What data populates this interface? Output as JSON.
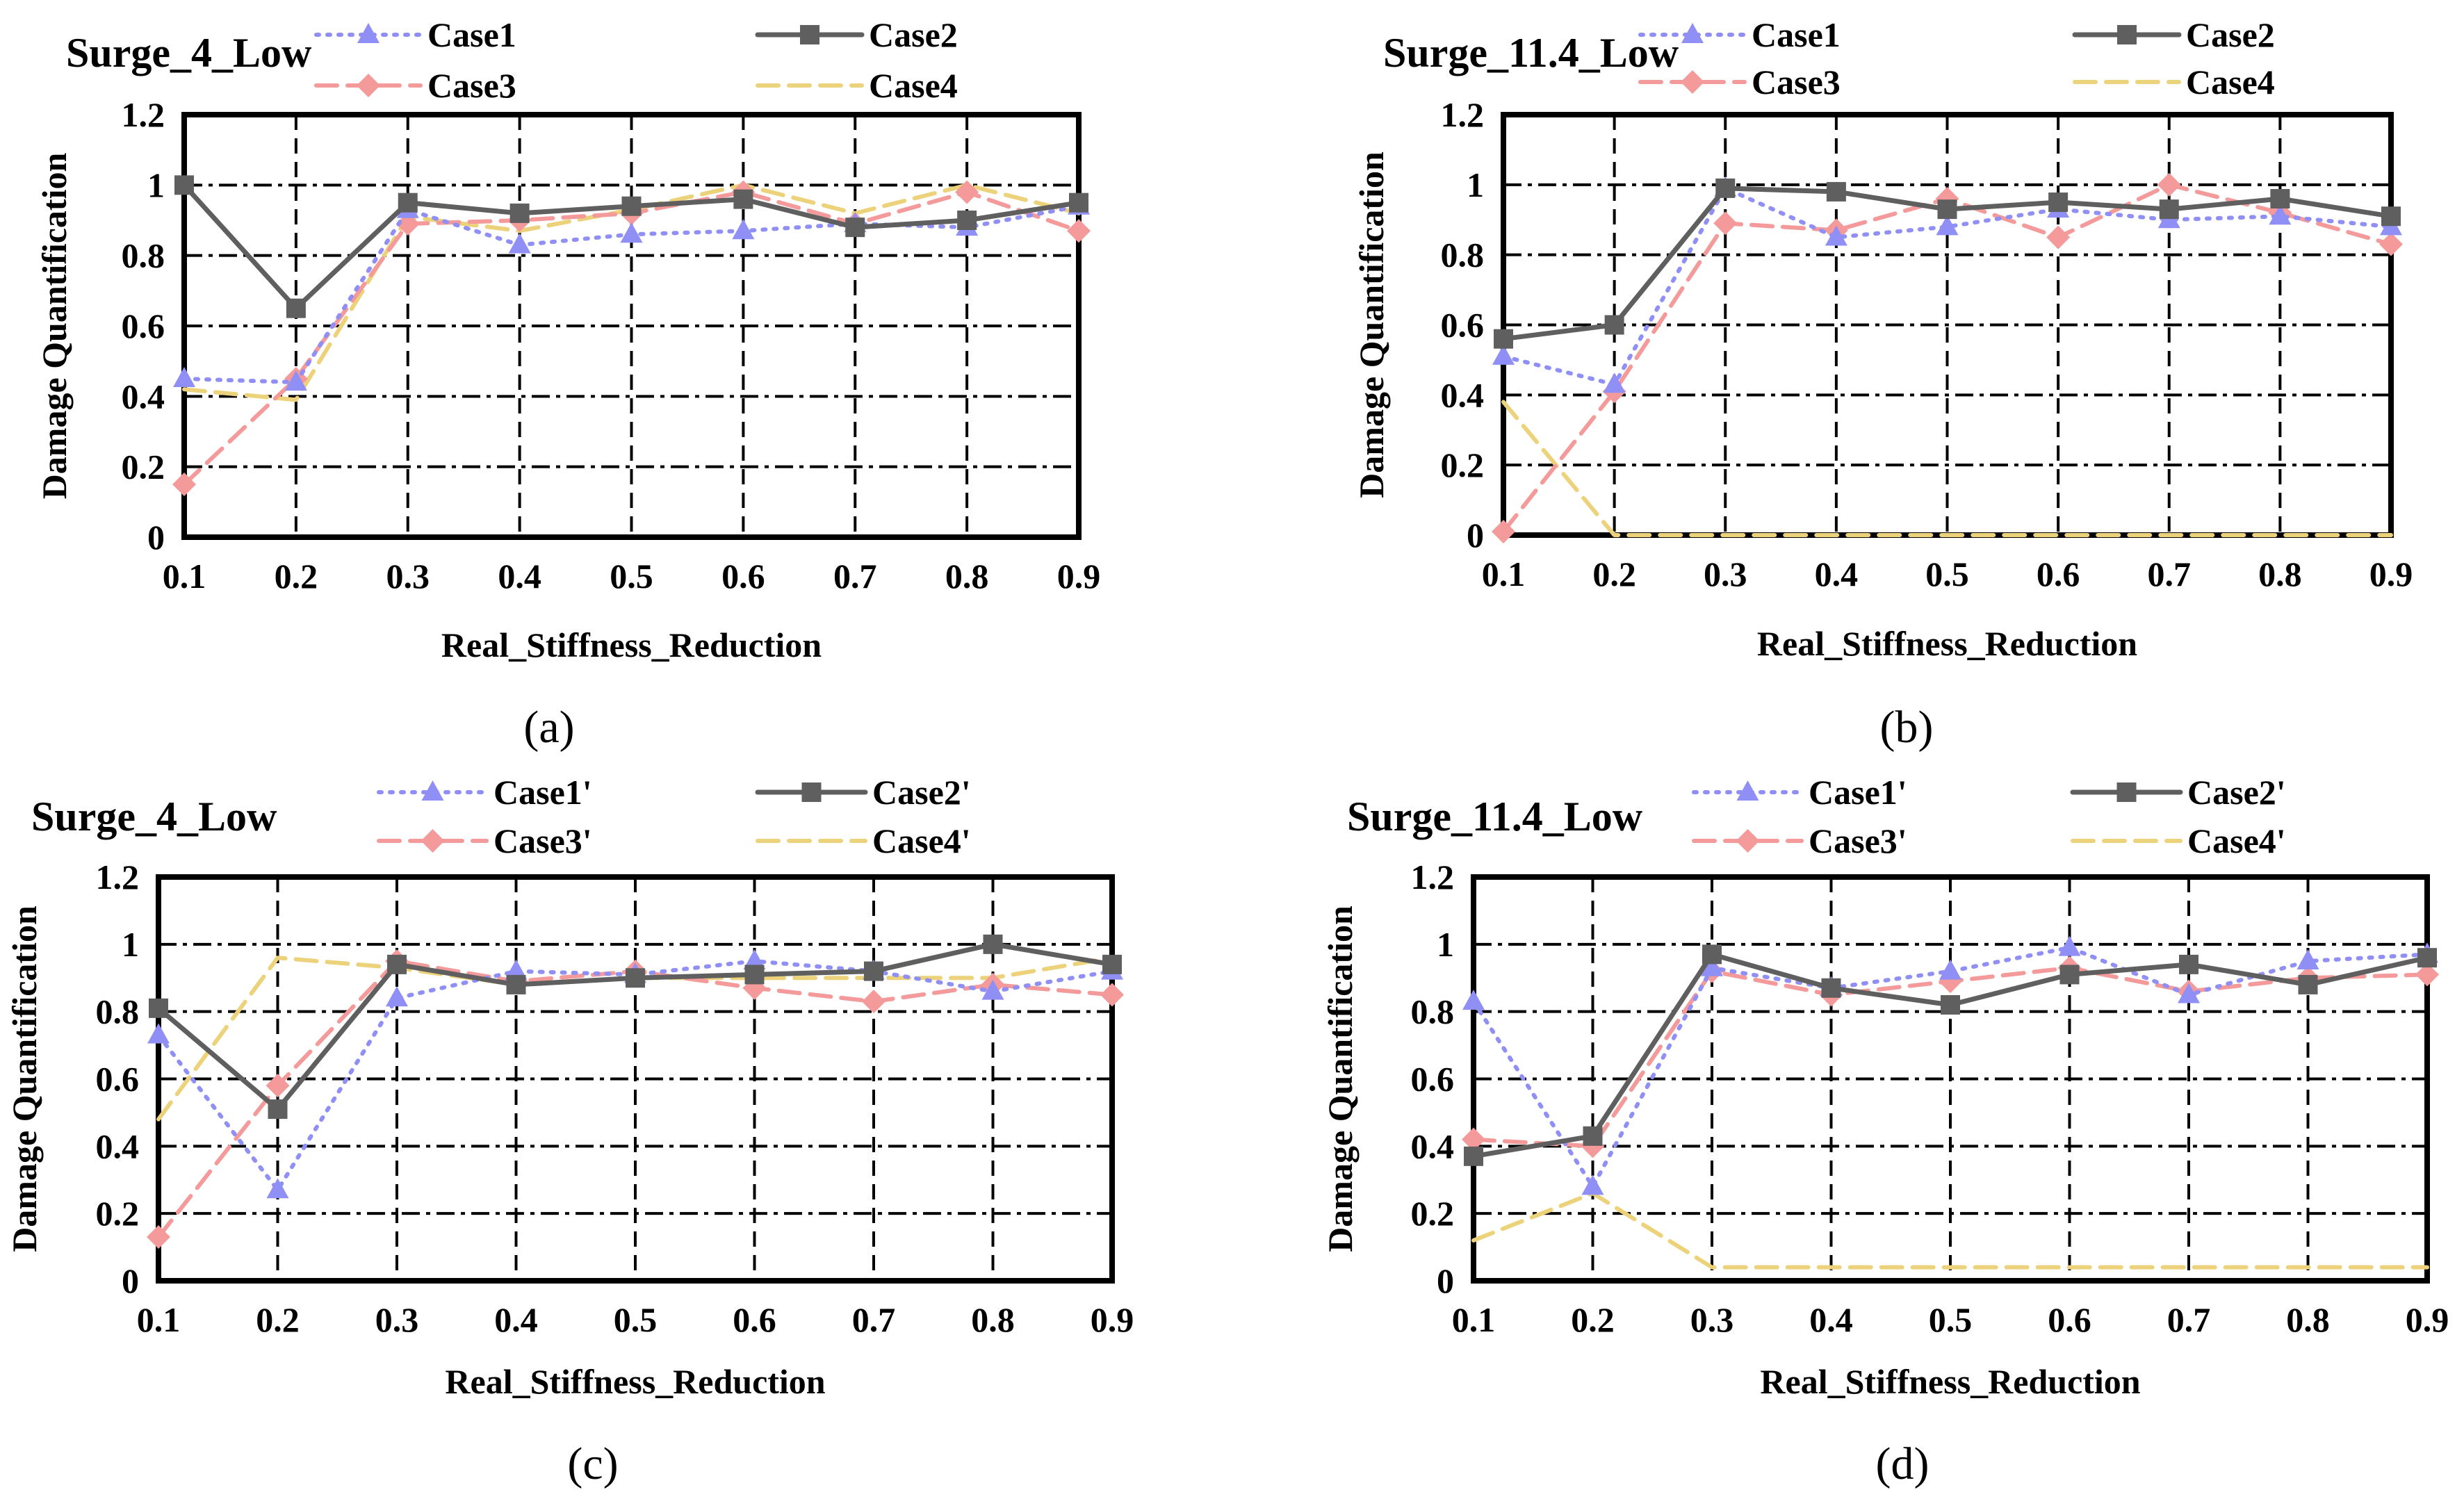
{
  "figure": {
    "panel_labels": [
      "(a)",
      "(b)",
      "(c)",
      "(d)"
    ]
  },
  "colors": {
    "s1": "#8f8ff5",
    "s2": "#5f5f5f",
    "s3": "#f49a9a",
    "s4": "#ecd27a",
    "grid": "#000000",
    "frame": "#000000"
  },
  "chart_data": [
    {
      "type": "line",
      "title": "Surge_4_Low",
      "xlabel": "Real_Stiffness_Reduction",
      "ylabel": "Damage Quantification",
      "x": [
        0.1,
        0.2,
        0.3,
        0.4,
        0.5,
        0.6,
        0.7,
        0.8,
        0.9
      ],
      "x_tick_labels": [
        "0.1",
        "0.2",
        "0.3",
        "0.4",
        "0.5",
        "0.6",
        "0.7",
        "0.8",
        "0.9"
      ],
      "y_tick_labels": [
        "0",
        "0.2",
        "0.4",
        "0.6",
        "0.8",
        "1",
        "1.2"
      ],
      "ylim": [
        0,
        1.2
      ],
      "grid": true,
      "legend_position": "top",
      "series": [
        {
          "name": "Case1",
          "marker": "triangle",
          "dash": "dotted",
          "values": [
            0.45,
            0.44,
            0.93,
            0.83,
            0.86,
            0.87,
            0.89,
            0.88,
            0.94
          ]
        },
        {
          "name": "Case2",
          "marker": "square",
          "dash": "solid",
          "values": [
            1.0,
            0.65,
            0.95,
            0.92,
            0.94,
            0.96,
            0.88,
            0.9,
            0.95
          ]
        },
        {
          "name": "Case3",
          "marker": "diamond",
          "dash": "dashed",
          "values": [
            0.15,
            0.45,
            0.89,
            0.9,
            0.92,
            0.98,
            0.89,
            0.98,
            0.87
          ]
        },
        {
          "name": "Case4",
          "marker": "none",
          "dash": "dashed",
          "values": [
            0.42,
            0.39,
            0.91,
            0.87,
            0.93,
            1.0,
            0.92,
            1.0,
            0.92
          ]
        }
      ]
    },
    {
      "type": "line",
      "title": "Surge_11.4_Low",
      "xlabel": "Real_Stiffness_Reduction",
      "ylabel": "Damage Quantification",
      "x": [
        0.1,
        0.2,
        0.3,
        0.4,
        0.5,
        0.6,
        0.7,
        0.8,
        0.9
      ],
      "x_tick_labels": [
        "0.1",
        "0.2",
        "0.3",
        "0.4",
        "0.5",
        "0.6",
        "0.7",
        "0.8",
        "0.9"
      ],
      "y_tick_labels": [
        "0",
        "0.2",
        "0.4",
        "0.6",
        "0.8",
        "1",
        "1.2"
      ],
      "ylim": [
        0,
        1.2
      ],
      "grid": true,
      "legend_position": "top",
      "series": [
        {
          "name": "Case1",
          "marker": "triangle",
          "dash": "dotted",
          "values": [
            0.51,
            0.43,
            0.99,
            0.85,
            0.88,
            0.93,
            0.9,
            0.91,
            0.88
          ]
        },
        {
          "name": "Case2",
          "marker": "square",
          "dash": "solid",
          "values": [
            0.56,
            0.6,
            0.99,
            0.98,
            0.93,
            0.95,
            0.93,
            0.96,
            0.91
          ]
        },
        {
          "name": "Case3",
          "marker": "diamond",
          "dash": "dashed",
          "values": [
            0.01,
            0.41,
            0.89,
            0.87,
            0.96,
            0.85,
            1.0,
            0.92,
            0.83
          ]
        },
        {
          "name": "Case4",
          "marker": "none",
          "dash": "dashed",
          "values": [
            0.38,
            0.0,
            0.0,
            0.0,
            0.0,
            0.0,
            0.0,
            0.0,
            0.0
          ]
        }
      ]
    },
    {
      "type": "line",
      "title": "Surge_4_Low",
      "xlabel": "Real_Stiffness_Reduction",
      "ylabel": "Damage Quantification",
      "x": [
        0.1,
        0.2,
        0.3,
        0.4,
        0.5,
        0.6,
        0.7,
        0.8,
        0.9
      ],
      "x_tick_labels": [
        "0.1",
        "0.2",
        "0.3",
        "0.4",
        "0.5",
        "0.6",
        "0.7",
        "0.8",
        "0.9"
      ],
      "y_tick_labels": [
        "0",
        "0.2",
        "0.4",
        "0.6",
        "0.8",
        "1",
        "1.2"
      ],
      "ylim": [
        0,
        1.2
      ],
      "grid": true,
      "legend_position": "top",
      "series": [
        {
          "name": "Case1'",
          "marker": "triangle",
          "dash": "dotted",
          "values": [
            0.73,
            0.27,
            0.84,
            0.92,
            0.91,
            0.95,
            0.92,
            0.86,
            0.92
          ]
        },
        {
          "name": "Case2'",
          "marker": "square",
          "dash": "solid",
          "values": [
            0.81,
            0.51,
            0.94,
            0.88,
            0.9,
            0.91,
            0.92,
            1.0,
            0.94
          ]
        },
        {
          "name": "Case3'",
          "marker": "diamond",
          "dash": "dashed",
          "values": [
            0.13,
            0.58,
            0.95,
            0.89,
            0.92,
            0.87,
            0.83,
            0.88,
            0.85
          ]
        },
        {
          "name": "Case4'",
          "marker": "none",
          "dash": "dashed",
          "values": [
            0.48,
            0.96,
            0.93,
            0.88,
            0.9,
            0.9,
            0.9,
            0.9,
            0.96
          ]
        }
      ]
    },
    {
      "type": "line",
      "title": "Surge_11.4_Low",
      "xlabel": "Real_Stiffness_Reduction",
      "ylabel": "Damage Quantification",
      "x": [
        0.1,
        0.2,
        0.3,
        0.4,
        0.5,
        0.6,
        0.7,
        0.8,
        0.9
      ],
      "x_tick_labels": [
        "0.1",
        "0.2",
        "0.3",
        "0.4",
        "0.5",
        "0.6",
        "0.7",
        "0.8",
        "0.9"
      ],
      "y_tick_labels": [
        "0",
        "0.2",
        "0.4",
        "0.6",
        "0.8",
        "1",
        "1.2"
      ],
      "ylim": [
        0,
        1.2
      ],
      "grid": true,
      "legend_position": "top",
      "series": [
        {
          "name": "Case1'",
          "marker": "triangle",
          "dash": "dotted",
          "values": [
            0.83,
            0.28,
            0.93,
            0.87,
            0.92,
            0.99,
            0.85,
            0.95,
            0.97
          ]
        },
        {
          "name": "Case2'",
          "marker": "square",
          "dash": "solid",
          "values": [
            0.37,
            0.43,
            0.97,
            0.87,
            0.82,
            0.91,
            0.94,
            0.88,
            0.96
          ]
        },
        {
          "name": "Case3'",
          "marker": "diamond",
          "dash": "dashed",
          "values": [
            0.42,
            0.4,
            0.92,
            0.85,
            0.89,
            0.93,
            0.86,
            0.9,
            0.91
          ]
        },
        {
          "name": "Case4'",
          "marker": "none",
          "dash": "dashed",
          "values": [
            0.12,
            0.26,
            0.04,
            0.04,
            0.04,
            0.04,
            0.04,
            0.04,
            0.04
          ]
        }
      ]
    }
  ]
}
